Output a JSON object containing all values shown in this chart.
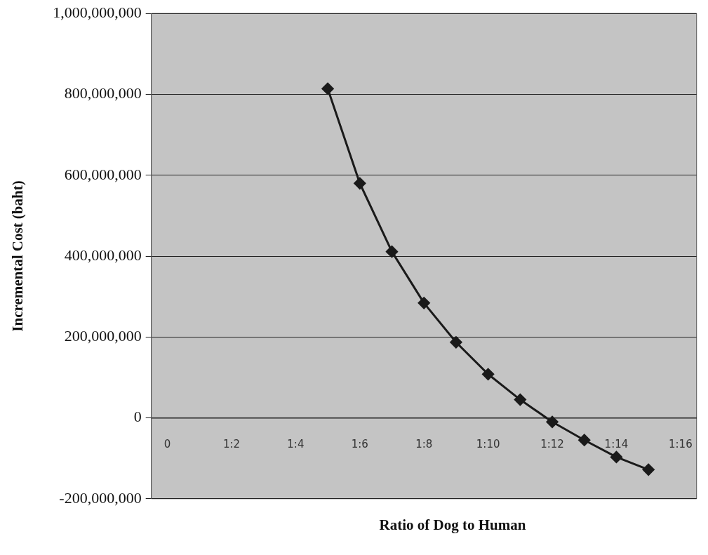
{
  "chart_data": {
    "type": "line",
    "xlabel": "Ratio of Dog to Human",
    "ylabel": "Incremental Cost (baht)",
    "categories": [
      "0",
      null,
      "1:2",
      null,
      "1:4",
      null,
      "1:6",
      null,
      "1:8",
      null,
      "1:10",
      null,
      "1:12",
      null,
      "1:14",
      null,
      "1:16"
    ],
    "series": [
      {
        "color": "#1a1a1a",
        "values": [
          null,
          null,
          null,
          null,
          null,
          814000000,
          580000000,
          411000000,
          284000000,
          187000000,
          108000000,
          45000000,
          -10000000,
          -55000000,
          -97000000,
          -128000000,
          null
        ]
      }
    ],
    "ylim": [
      -200000000,
      1000000000
    ],
    "yticks": [
      {
        "value": -200000000,
        "label": "-200,000,000"
      },
      0,
      {
        "value": 200000000,
        "label": "200,000,000"
      },
      {
        "value": 400000000,
        "label": "400,000,000"
      },
      {
        "value": 600000000,
        "label": "600,000,000"
      },
      {
        "value": 800000000,
        "label": "800,000,000"
      },
      {
        "value": 1000000000,
        "label": "1,000,000,000"
      }
    ],
    "grid": "y",
    "legend": false,
    "marker": "diamond",
    "line_style": "solid"
  }
}
